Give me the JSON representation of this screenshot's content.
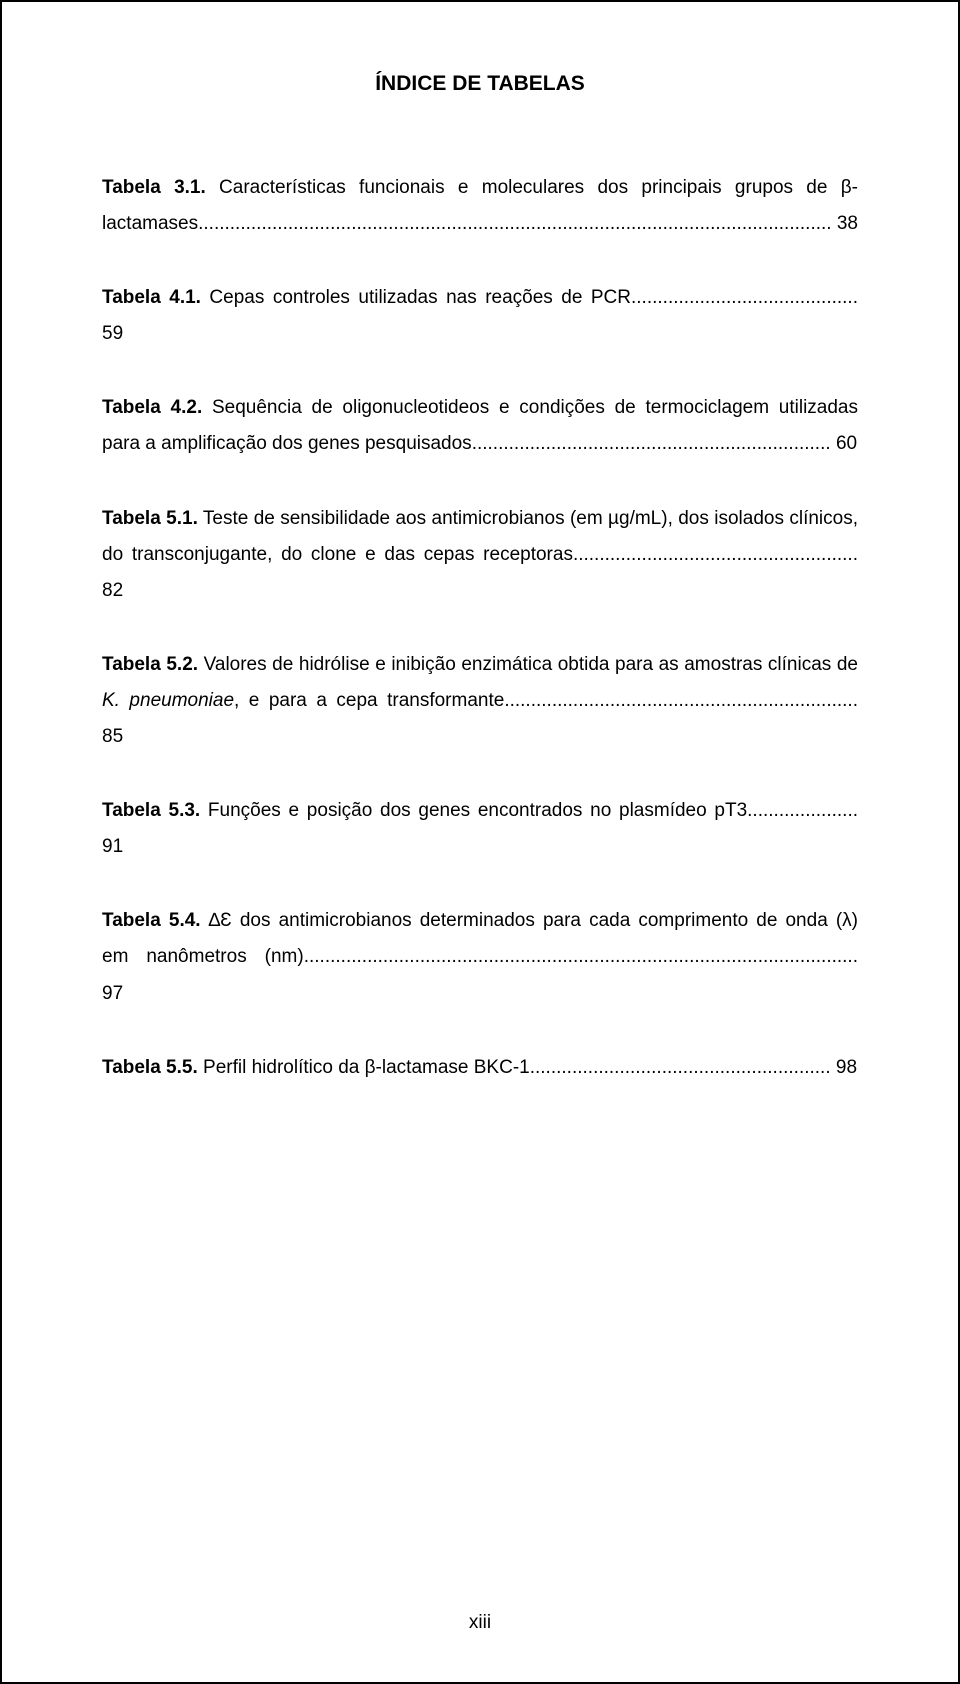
{
  "title": "ÍNDICE DE TABELAS",
  "entries": [
    {
      "label": "Tabela 3.1.",
      "pre": " Características funcionais e moleculares dos principais grupos de β-lactamases",
      "post": "",
      "page": "38"
    },
    {
      "label": "Tabela 4.1.",
      "pre": " Cepas controles utilizadas nas reações de PCR",
      "post": "",
      "page": "59"
    },
    {
      "label": "Tabela 4.2.",
      "pre": " Sequência de oligonucleotideos e condições de termociclagem utilizadas para a amplificação dos genes pesquisados",
      "post": "",
      "page": "60"
    },
    {
      "label": "Tabela 5.1.",
      "pre": " Teste de sensibilidade aos antimicrobianos (em µg/mL), dos isolados clínicos, do transconjugante, do clone e das cepas receptoras",
      "post": "",
      "page": "82"
    },
    {
      "label": "Tabela 5.2.",
      "pre": " Valores de hidrólise e inibição enzimática obtida para as amostras clínicas de ",
      "italic": "K. pneumoniae",
      "post": ", e para a cepa transformante",
      "page": "85"
    },
    {
      "label": "Tabela 5.3.",
      "pre": " Funções e posição dos genes encontrados no plasmídeo pT3",
      "post": "",
      "page": "91"
    },
    {
      "label": "Tabela 5.4.",
      "pre": " ∆Ɛ dos antimicrobianos determinados para cada comprimento de onda (λ) em nanômetros (nm)",
      "post": "",
      "page": "97"
    },
    {
      "label": "Tabela 5.5.",
      "pre": " Perfil hidrolítico da β-lactamase BKC-1",
      "post": "",
      "page": "98"
    }
  ],
  "pageNumber": "xiii",
  "style": {
    "leaderChar": ".",
    "titleFontSize": 21,
    "bodyFontSize": 19,
    "textColor": "#000000",
    "backgroundColor": "#ffffff",
    "borderColor": "#000000"
  }
}
